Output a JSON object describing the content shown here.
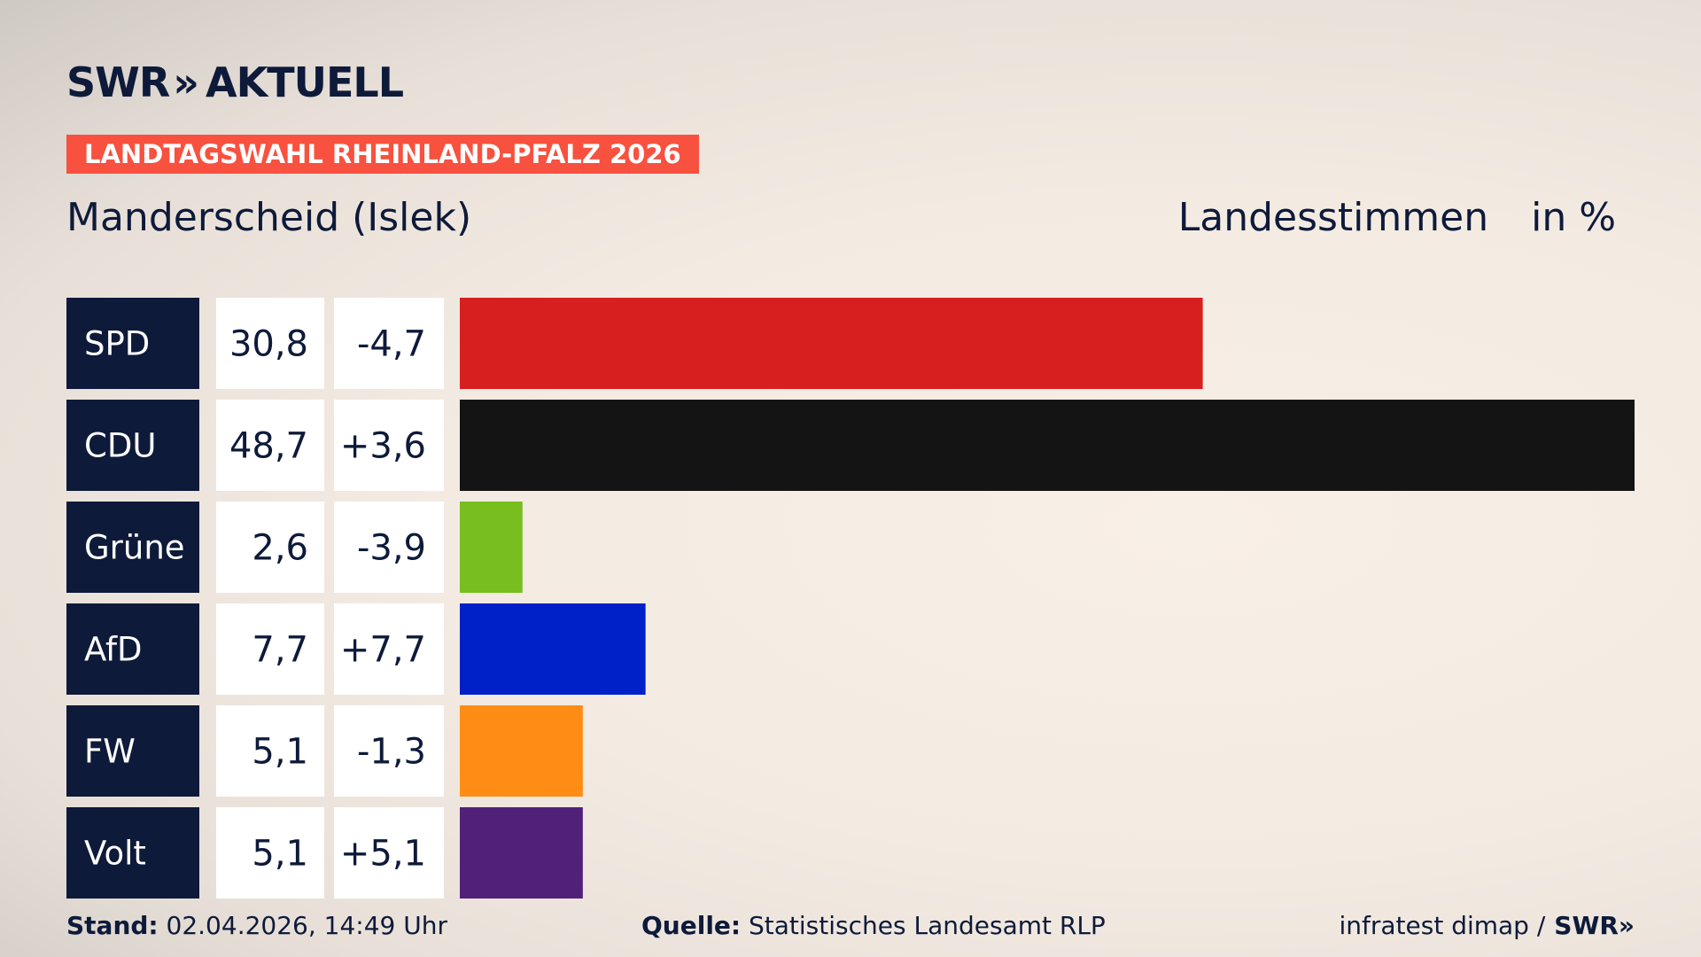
{
  "branding": {
    "logo_text": "SWR",
    "logo_chevrons": "»",
    "logo_sub": "AKTUELL"
  },
  "banner": "LANDTAGSWAHL RHEINLAND-PFALZ 2026",
  "region": "Manderscheid (Islek)",
  "metric": "Landesstimmen",
  "unit": "in %",
  "footer": {
    "stand_label": "Stand:",
    "stand_value": "02.04.2026, 14:49 Uhr",
    "quelle_label": "Quelle:",
    "quelle_value": "Statistisches Landesamt RLP",
    "credit": "infratest dimap /",
    "credit_logo": "SWR»"
  },
  "chart_data": {
    "type": "bar",
    "orientation": "horizontal",
    "categories": [
      "SPD",
      "CDU",
      "Grüne",
      "AfD",
      "FW",
      "Volt"
    ],
    "values": [
      30.8,
      48.7,
      2.6,
      7.7,
      5.1,
      5.1
    ],
    "value_labels": [
      "30,8",
      "48,7",
      "2,6",
      "7,7",
      "5,1",
      "5,1"
    ],
    "changes": [
      -4.7,
      3.6,
      -3.9,
      7.7,
      -1.3,
      5.1
    ],
    "change_labels": [
      "-4,7",
      "+3,6",
      "-3,9",
      "+7,7",
      "-1,3",
      "+5,1"
    ],
    "colors": [
      "#d71f1f",
      "#141414",
      "#78be1e",
      "#0020c8",
      "#ff8c14",
      "#51217a"
    ],
    "xlim": [
      0,
      48.7
    ],
    "grid": false,
    "legend": "none"
  }
}
